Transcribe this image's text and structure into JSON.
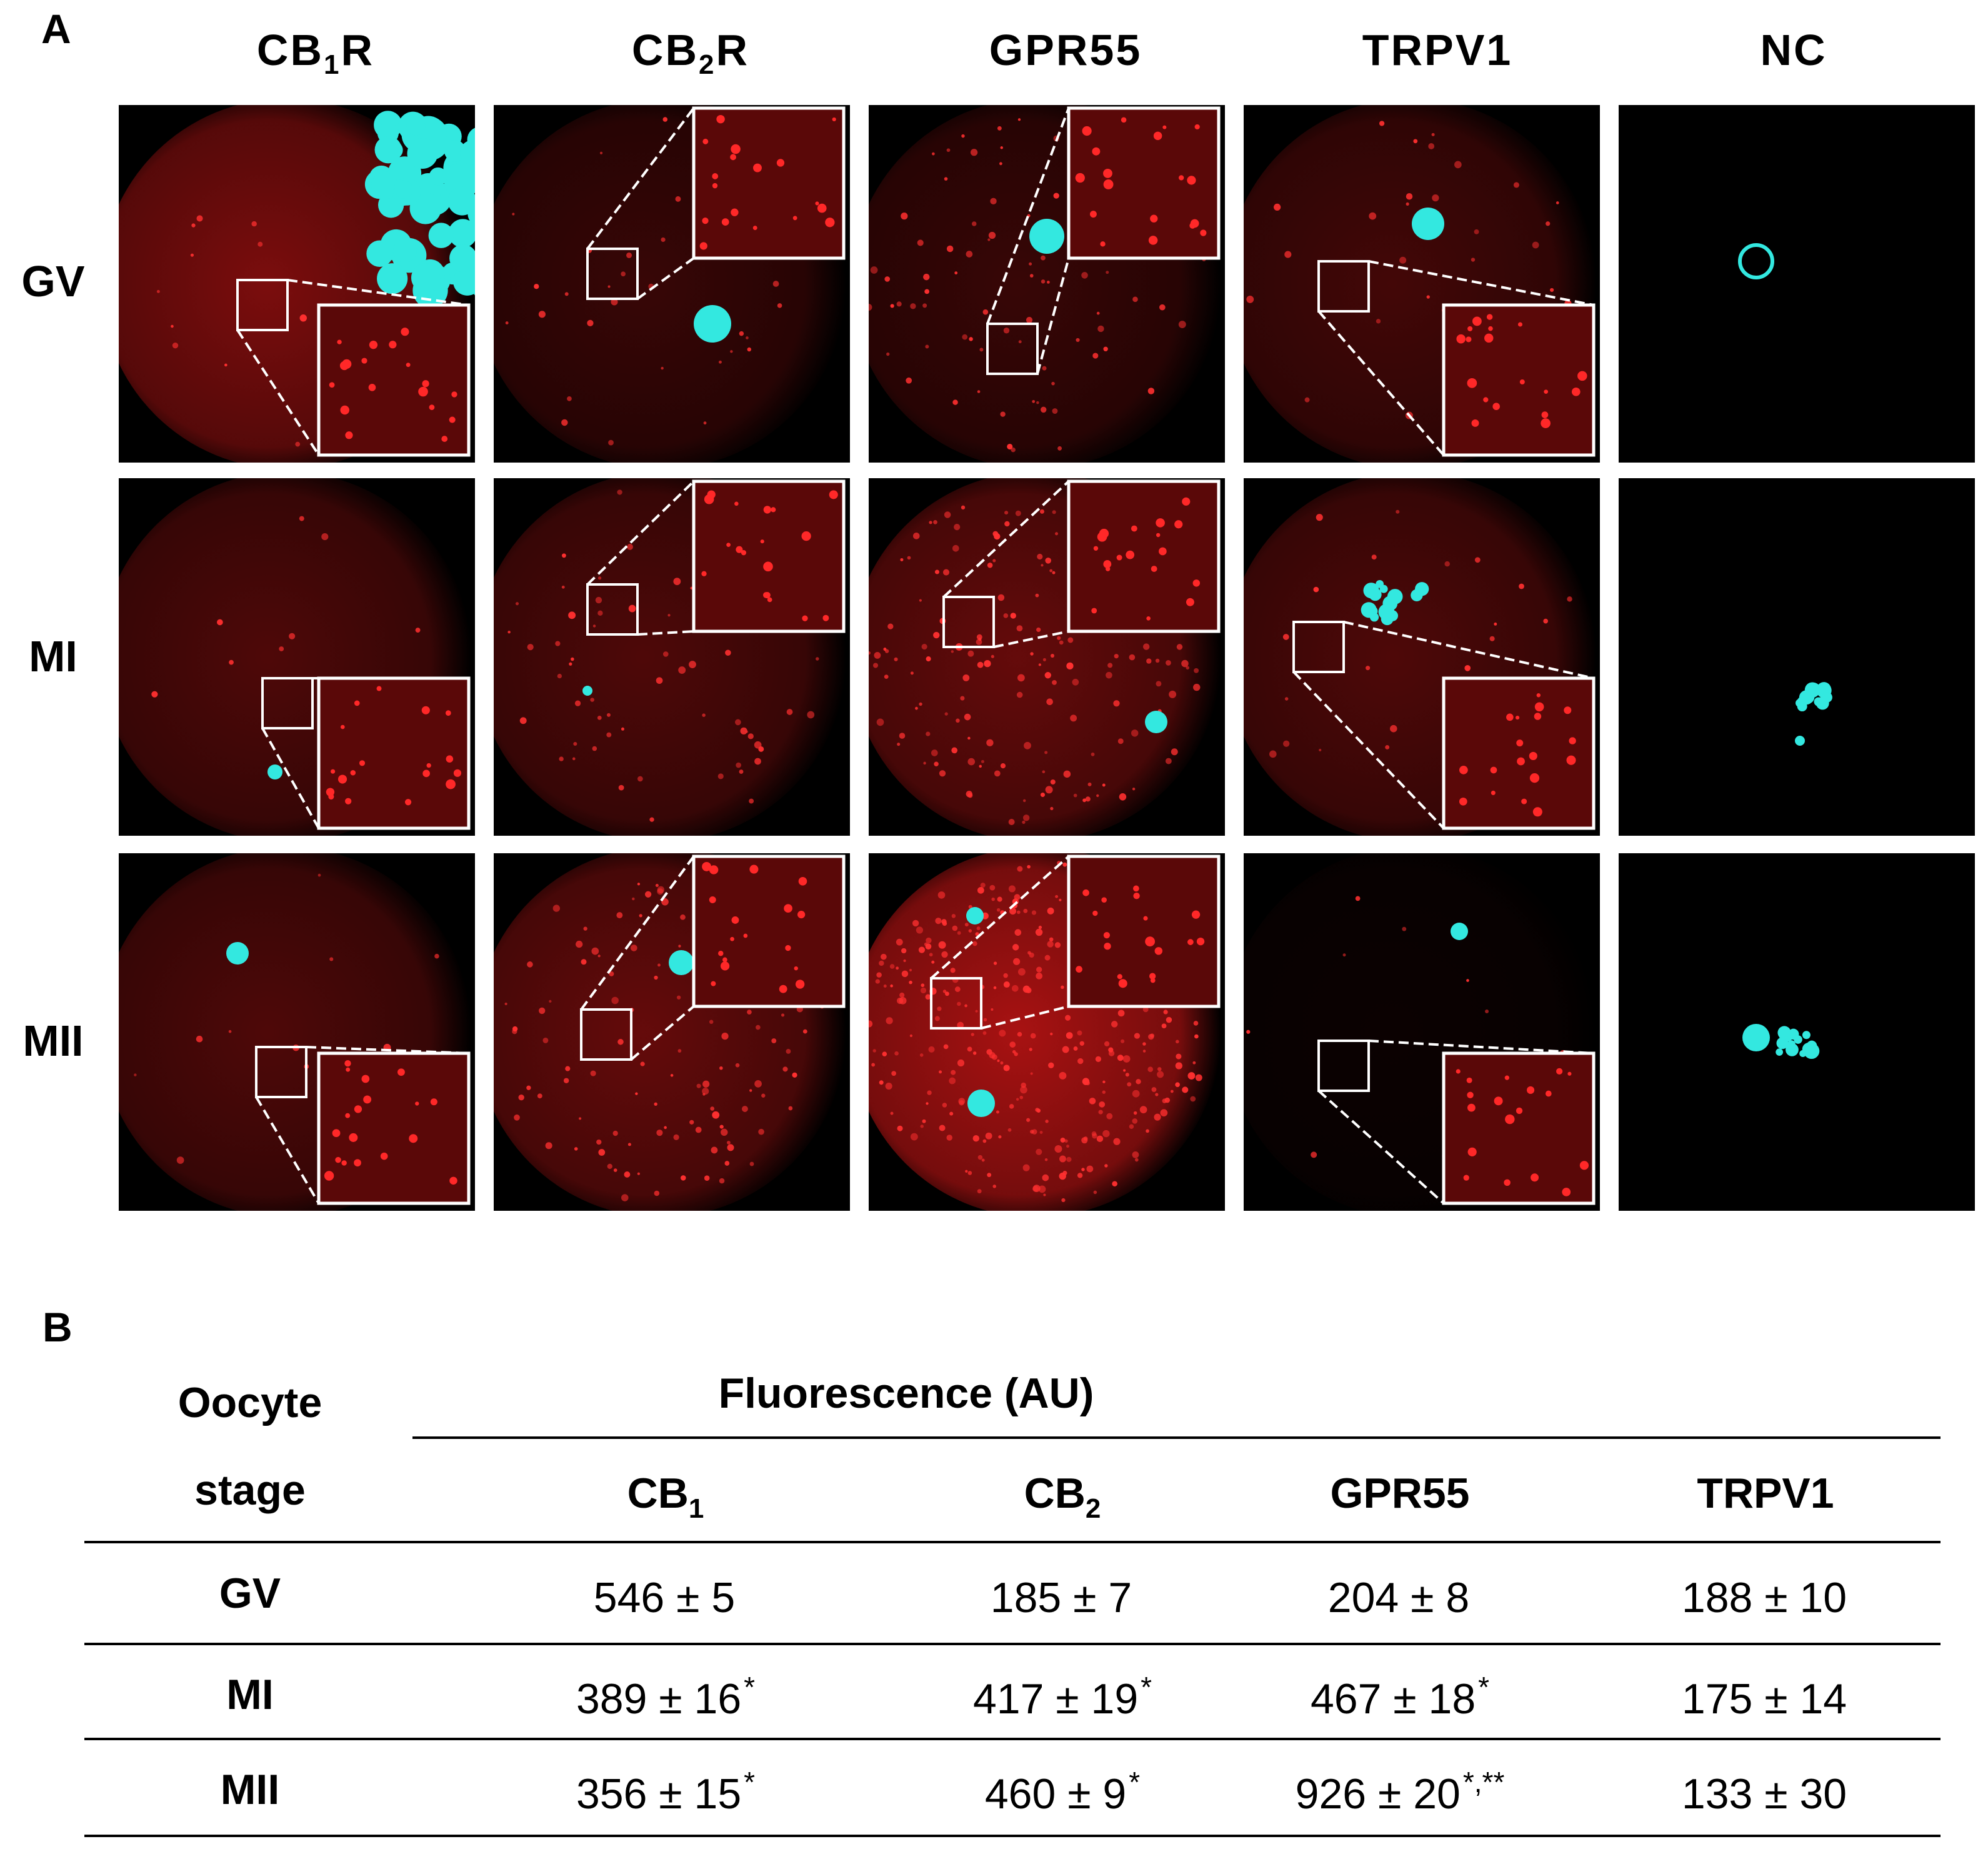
{
  "panel_a": {
    "letter": "A",
    "columns": [
      {
        "base": "CB",
        "sub": "1",
        "tail": "R"
      },
      {
        "base": "CB",
        "sub": "2",
        "tail": "R"
      },
      {
        "base": "GPR55",
        "sub": "",
        "tail": ""
      },
      {
        "base": "TRPV1",
        "sub": "",
        "tail": ""
      },
      {
        "base": "NC",
        "sub": "",
        "tail": ""
      }
    ],
    "rows": [
      "GV",
      "MI",
      "MII"
    ],
    "colors": {
      "receptor_stain": "#e01818",
      "dna_stain": "#33e8e0",
      "background": "#000000"
    }
  },
  "panel_b": {
    "letter": "B",
    "stage_header_line1": "Oocyte",
    "stage_header_line2": "stage",
    "group_header": "Fluorescence (AU)",
    "columns": [
      {
        "base": "CB",
        "sub": "1"
      },
      {
        "base": "CB",
        "sub": "2"
      },
      {
        "base": "GPR55",
        "sub": ""
      },
      {
        "base": "TRPV1",
        "sub": ""
      }
    ],
    "rows": [
      {
        "stage": "GV",
        "cells": [
          {
            "v": "546 ± 5",
            "sig": ""
          },
          {
            "v": "185 ± 7",
            "sig": ""
          },
          {
            "v": "204 ± 8",
            "sig": ""
          },
          {
            "v": "188 ± 10",
            "sig": ""
          }
        ]
      },
      {
        "stage": "MI",
        "cells": [
          {
            "v": "389 ± 16",
            "sig": "*"
          },
          {
            "v": "417 ± 19",
            "sig": "*"
          },
          {
            "v": "467 ± 18",
            "sig": "*"
          },
          {
            "v": "175 ± 14",
            "sig": ""
          }
        ]
      },
      {
        "stage": "MII",
        "cells": [
          {
            "v": "356 ± 15",
            "sig": "*"
          },
          {
            "v": "460 ± 9",
            "sig": "*"
          },
          {
            "v": "926 ± 20",
            "sig": "*,**"
          },
          {
            "v": "133 ± 30",
            "sig": ""
          }
        ]
      }
    ]
  }
}
